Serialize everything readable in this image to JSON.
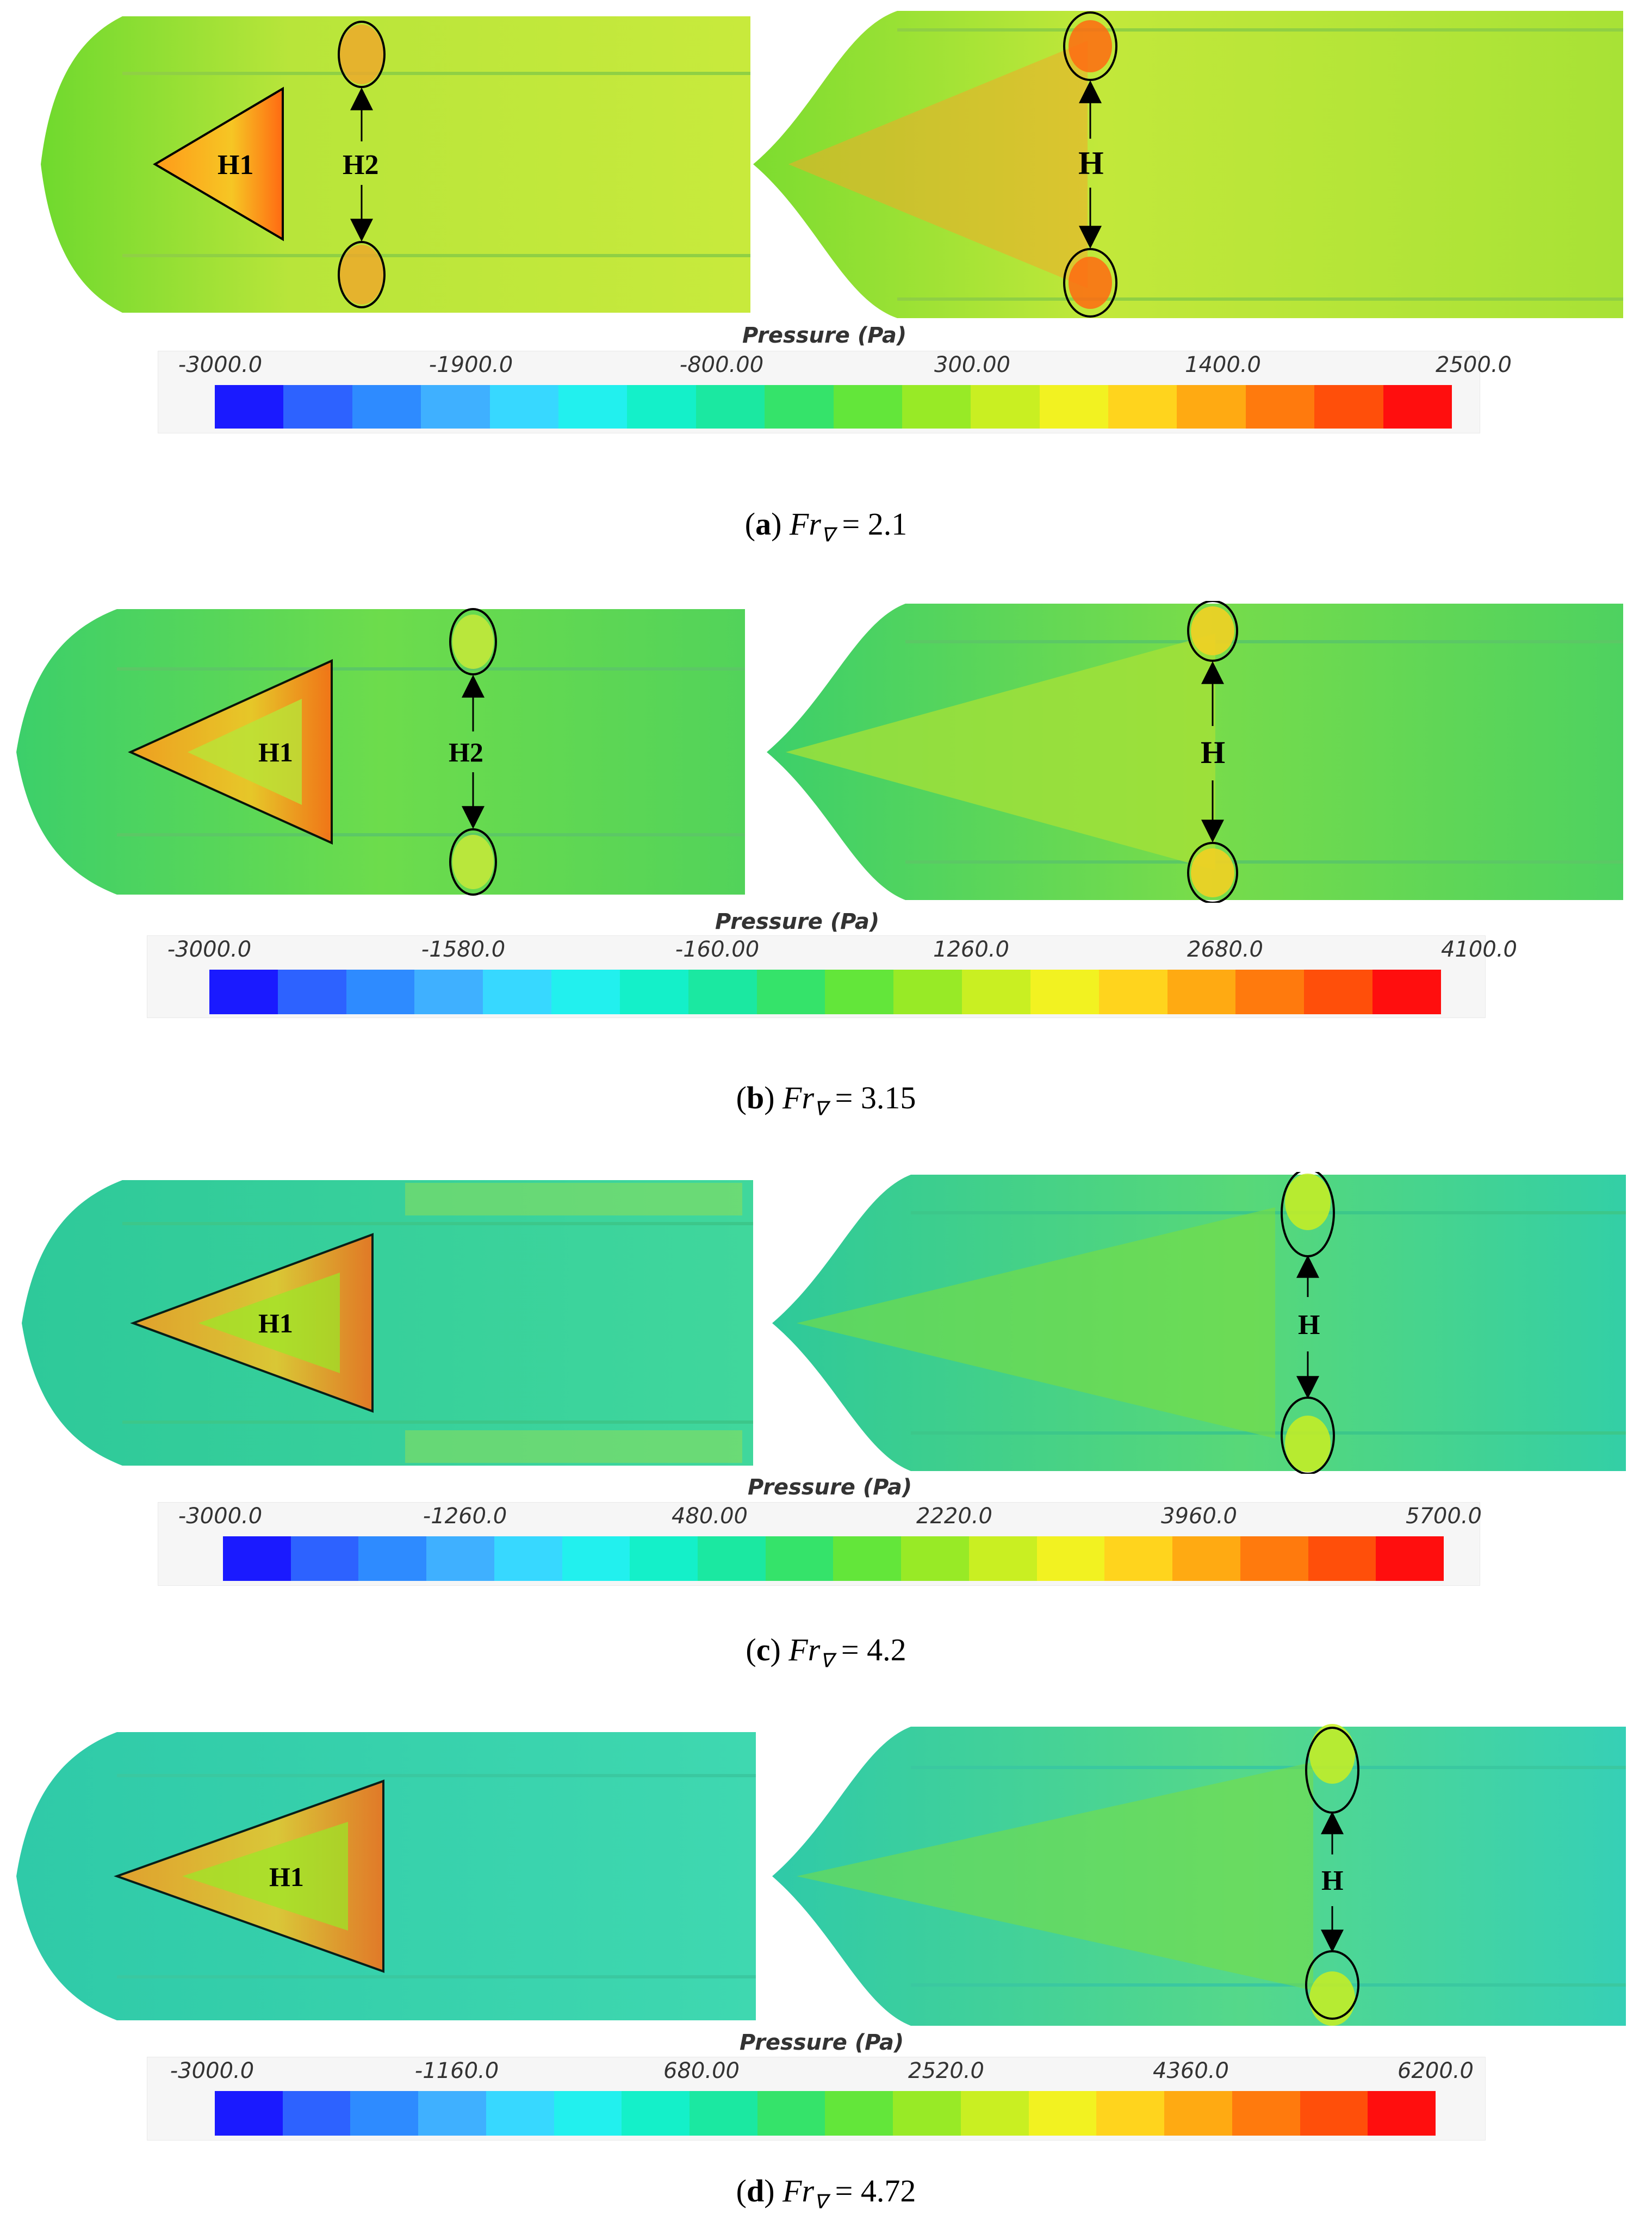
{
  "figure": {
    "colorbar_stops": [
      "#1a1aff",
      "#2d62ff",
      "#2e8bff",
      "#3fb0ff",
      "#37d8ff",
      "#22f0ee",
      "#14f0c9",
      "#1be8a1",
      "#35e36a",
      "#63e63a",
      "#98ea26",
      "#c9ef22",
      "#f2f221",
      "#ffd41d",
      "#ffaa12",
      "#ff7a0d",
      "#ff4f0a",
      "#ff0e0e"
    ],
    "panels": [
      {
        "id": "a",
        "caption": {
          "letter": "a",
          "symbol": "Fr",
          "subscript": "∇",
          "value": "= 2.1"
        },
        "colorbar": {
          "title": "Pressure (Pa)",
          "ticks": [
            "-3000.0",
            "-1900.0",
            "-800.00",
            "300.00",
            "1400.0",
            "2500.0"
          ],
          "min": -3000,
          "max": 2500
        },
        "left_hull": {
          "label_h1": "H1",
          "label_h2": "H2"
        },
        "right_hull": {
          "label_h": "H"
        }
      },
      {
        "id": "b",
        "caption": {
          "letter": "b",
          "symbol": "Fr",
          "subscript": "∇",
          "value": "= 3.15"
        },
        "colorbar": {
          "title": "Pressure (Pa)",
          "ticks": [
            "-3000.0",
            "-1580.0",
            "-160.00",
            "1260.0",
            "2680.0",
            "4100.0"
          ],
          "min": -3000,
          "max": 4100
        },
        "left_hull": {
          "label_h1": "H1",
          "label_h2": "H2"
        },
        "right_hull": {
          "label_h": "H"
        }
      },
      {
        "id": "c",
        "caption": {
          "letter": "c",
          "symbol": "Fr",
          "subscript": "∇",
          "value": "= 4.2"
        },
        "colorbar": {
          "title": "Pressure (Pa)",
          "ticks": [
            "-3000.0",
            "-1260.0",
            "480.00",
            "2220.0",
            "3960.0",
            "5700.0"
          ],
          "min": -3000,
          "max": 5700
        },
        "left_hull": {
          "label_h1": "H1"
        },
        "right_hull": {
          "label_h": "H"
        }
      },
      {
        "id": "d",
        "caption": {
          "letter": "d",
          "symbol": "Fr",
          "subscript": "∇",
          "value": "= 4.72"
        },
        "colorbar": {
          "title": "Pressure (Pa)",
          "ticks": [
            "-3000.0",
            "-1160.0",
            "680.00",
            "2520.0",
            "4360.0",
            "6200.0"
          ],
          "min": -3000,
          "max": 6200
        },
        "left_hull": {
          "label_h1": "H1"
        },
        "right_hull": {
          "label_h": "H"
        }
      }
    ]
  }
}
